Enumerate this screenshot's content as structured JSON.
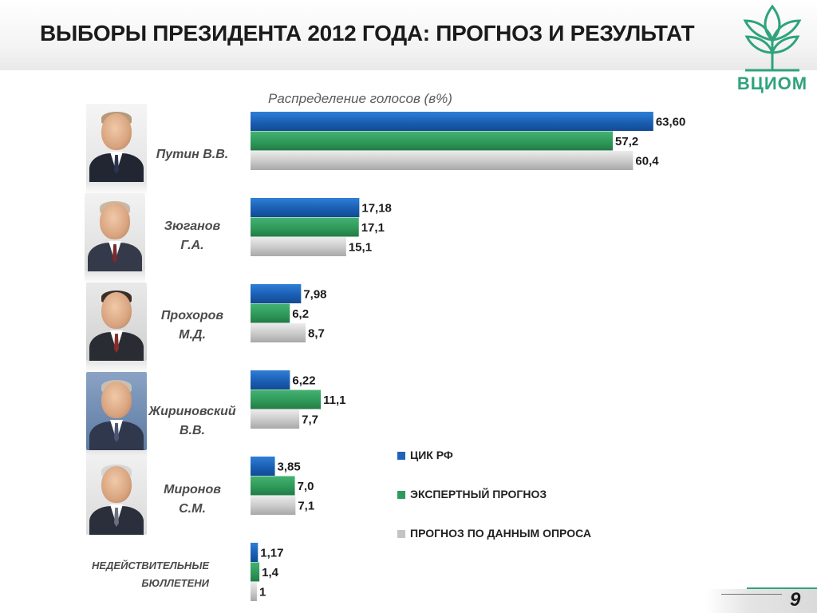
{
  "slide": {
    "title": "ВЫБОРЫ ПРЕЗИДЕНТА 2012 ГОДА: ПРОГНОЗ И РЕЗУЛЬТАТ",
    "page_number": "9",
    "logo_text": "ВЦИОМ",
    "logo_icon": "leaf-sprout-icon",
    "colors": {
      "title": "#1b1b1b",
      "logo_green": "#2fa37c",
      "cik": "#1e63b8",
      "expert": "#2f9a5a",
      "survey": "#c4c4c4"
    }
  },
  "candidates": [
    {
      "name": "Путин В.В.",
      "icon": "portrait-putin"
    },
    {
      "name": "Зюганов\nГ.А.",
      "icon": "portrait-zyuganov"
    },
    {
      "name": "Прохоров\nМ.Д.",
      "icon": "portrait-prokhorov"
    },
    {
      "name": "Жириновский\nВ.В.",
      "icon": "portrait-zhirinovsky"
    },
    {
      "name": "Миронов\nС.М.",
      "icon": "portrait-mironov"
    },
    {
      "name": "НЕДЕЙСТВИТЕЛЬНЫЕ\nБЮЛЛЕТЕНИ"
    }
  ],
  "chart_data": {
    "type": "bar",
    "orientation": "horizontal",
    "title": "Распределение голосов (в%)",
    "categories": [
      "Путин В.В.",
      "Зюганов Г.А.",
      "Прохоров М.Д.",
      "Жириновский В.В.",
      "Миронов С.М.",
      "НЕДЕЙСТВИТЕЛЬНЫЕ БЮЛЛЕТЕНИ"
    ],
    "xlim": [
      0,
      64
    ],
    "grid": false,
    "legend_position": "right",
    "series": [
      {
        "name": "ЦИК РФ",
        "color": "#1e63b8",
        "values": [
          63.6,
          17.18,
          7.98,
          6.22,
          3.85,
          1.17
        ],
        "labels": [
          "63,60",
          "17,18",
          "7,98",
          "6,22",
          "3,85",
          "1,17"
        ]
      },
      {
        "name": "ЭКСПЕРТНЫЙ ПРОГНОЗ",
        "color": "#2f9a5a",
        "values": [
          57.2,
          17.1,
          6.2,
          11.1,
          7.0,
          1.4
        ],
        "labels": [
          "57,2",
          "17,1",
          "6,2",
          "11,1",
          "7,0",
          "1,4"
        ]
      },
      {
        "name": "ПРОГНОЗ ПО ДАННЫМ ОПРОСА",
        "color": "#c4c4c4",
        "values": [
          60.4,
          15.1,
          8.7,
          7.7,
          7.1,
          1.0
        ],
        "labels": [
          "60,4",
          "15,1",
          "8,7",
          "7,7",
          "7,1",
          "1"
        ]
      }
    ]
  }
}
